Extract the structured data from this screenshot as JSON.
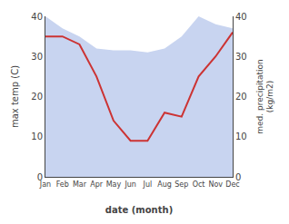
{
  "chart_data": {
    "type": "line",
    "xlabel": "date (month)",
    "ylabel": "max temp (C)",
    "y2label": "med. precipitation\n(kg/m2)",
    "categories": [
      "Jan",
      "Feb",
      "Mar",
      "Apr",
      "May",
      "Jun",
      "Jul",
      "Aug",
      "Sep",
      "Oct",
      "Nov",
      "Dec"
    ],
    "series": [
      {
        "type": "area",
        "axis": "y2",
        "color": "#c8d4f0",
        "values": [
          40,
          37,
          35,
          32,
          31.5,
          31.5,
          31,
          32,
          35,
          40,
          38,
          37
        ]
      },
      {
        "type": "line",
        "color": "#cc3333",
        "values": [
          35,
          35,
          33,
          25,
          14,
          9,
          9,
          16,
          15,
          25,
          30,
          36
        ]
      }
    ],
    "ylim": [
      0,
      40
    ],
    "yticks": [
      0,
      10,
      20,
      30,
      40
    ],
    "y2lim": [
      0,
      40
    ],
    "y2ticks": [
      0,
      10,
      20,
      30,
      40
    ],
    "grid": false
  }
}
